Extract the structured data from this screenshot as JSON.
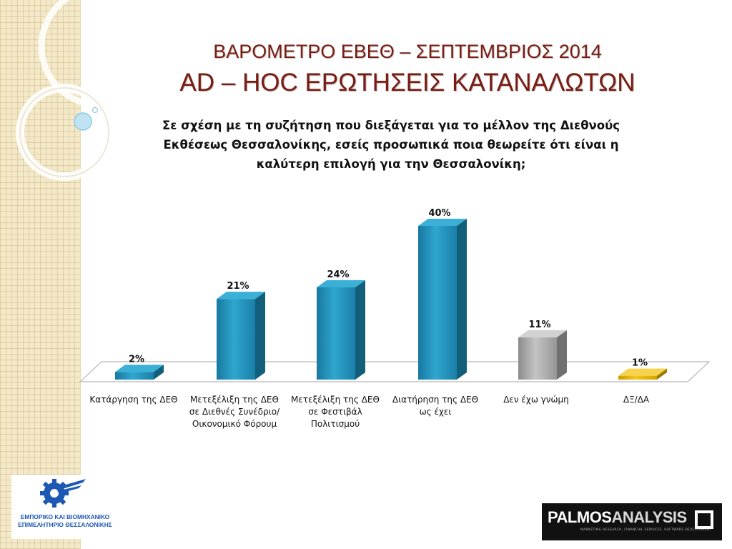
{
  "title_line1": "ΒΑΡΟΜΕΤΡΟ ΕΒΕΘ – ΣΕΠΤΕΜΒΡΙΟΣ 2014",
  "title_line2": "AD – HOC ΕΡΩΤΗΣΕΙΣ ΚΑΤΑΝΑΛΩΤΩΝ",
  "question": "Σε σχέση με τη συζήτηση που διεξάγεται για το μέλλον της Διεθνούς Εκθέσεως Θεσσαλονίκης, εσείς προσωπικά ποια θεωρείτε ότι είναι η καλύτερη επιλογή για την Θεσσαλονίκη;",
  "chart_data": {
    "type": "bar",
    "categories": [
      "Κατάργηση της ΔΕΘ",
      "Μετεξέλιξη της ΔΕΘ σε Διεθνές Συνέδριο/ Οικονομικό Φόρουμ",
      "Μετεξέλιξη της ΔΕΘ σε Φεστιβάλ Πολιτισμού",
      "Διατήρηση της ΔΕΘ ως έχει",
      "Δεν έχω γνώμη",
      "ΔΞ/ΔΑ"
    ],
    "values": [
      2,
      21,
      24,
      40,
      11,
      1
    ],
    "labels": [
      "2%",
      "21%",
      "24%",
      "40%",
      "11%",
      "1%"
    ],
    "unit": "%",
    "ylim": [
      0,
      40
    ],
    "style": "3d-bars",
    "colors": [
      "#1e8db3",
      "#1e8db3",
      "#1e8db3",
      "#1e8db3",
      "#a6a6a6",
      "#e3b400"
    ],
    "grid": false,
    "legend": "none"
  },
  "logo_left": {
    "line1": "ΕΜΠΟΡΙΚΟ ΚΑΙ ΒΙΟΜΗΧΑΝΙΚΟ",
    "line2": "ΕΠΙΜΕΛΗΤΗΡΙΟ ΘΕΣΣΑΛΟΝΙΚΗΣ",
    "icon": "gear-with-wing-logo",
    "color": "#1d59b3"
  },
  "logo_right": {
    "brand_part1": "PALMOS",
    "brand_part2": "ANALYSIS",
    "tagline": "MARKETING RESEARCH, FINANCIAL SERVICES, SOFTWARE DEVELOPMENT"
  }
}
